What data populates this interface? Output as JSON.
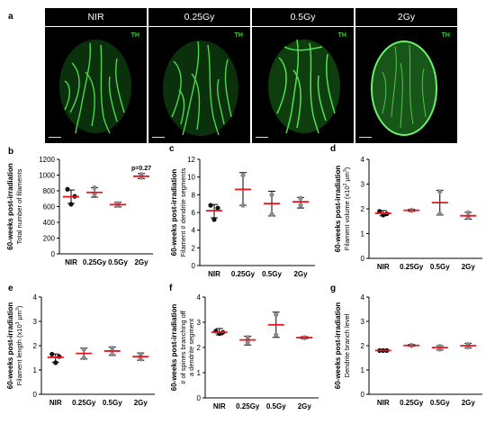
{
  "figure": {
    "panel_a": {
      "label": "a",
      "headers": [
        "NIR",
        "0.25Gy",
        "0.5Gy",
        "2Gy"
      ],
      "stain_label": "TH"
    }
  },
  "colors": {
    "mean_line": "#e8141e",
    "error_bar": "#000000",
    "heart_green": "#36c23a",
    "dot_dark": "#111111",
    "dot_grey": "#8a8a8a"
  },
  "chart_data": [
    {
      "panel": "b",
      "type": "scatter",
      "title": "",
      "ylabel_line1": "60-weeks post-irradiation",
      "ylabel_line2": "Total number of filaments",
      "categories": [
        "NIR",
        "0.25Gy",
        "0.5Gy",
        "2Gy"
      ],
      "ylim": [
        0,
        1200
      ],
      "yticks": [
        "0",
        "200",
        "400",
        "600",
        "800",
        "1000",
        "1200"
      ],
      "annotation": {
        "text": "p=0.27",
        "category": "2Gy"
      },
      "groups": [
        {
          "name": "NIR",
          "points": [
            820,
            730,
            630
          ],
          "mean": 725,
          "err": [
            640,
            810
          ],
          "color": "#111111"
        },
        {
          "name": "0.25Gy",
          "points": [
            840,
            760
          ],
          "mean": 780,
          "err": [
            720,
            840
          ],
          "color": "#8a8a8a"
        },
        {
          "name": "0.5Gy",
          "points": [
            640,
            620
          ],
          "mean": 625,
          "err": [
            595,
            655
          ],
          "color": "#8a8a8a"
        },
        {
          "name": "2Gy",
          "points": [
            1010,
            970
          ],
          "mean": 985,
          "err": [
            955,
            1020
          ],
          "color": "#8a8a8a"
        }
      ]
    },
    {
      "panel": "c",
      "type": "scatter",
      "ylabel_line1": "60-weeks post-irradiation",
      "ylabel_line2": "Filament # dendrite segments",
      "categories": [
        "NIR",
        "0.25Gy",
        "0.5Gy",
        "2Gy"
      ],
      "ylim": [
        0,
        12
      ],
      "yticks": [
        "0",
        "2",
        "4",
        "6",
        "8",
        "10",
        "12"
      ],
      "groups": [
        {
          "name": "NIR",
          "points": [
            6.8,
            6.5,
            5.2
          ],
          "mean": 6.2,
          "err": [
            5.4,
            6.9
          ],
          "color": "#111111"
        },
        {
          "name": "0.25Gy",
          "points": [
            10.2,
            6.8
          ],
          "mean": 8.6,
          "err": [
            6.8,
            10.5
          ],
          "color": "#8a8a8a"
        },
        {
          "name": "0.5Gy",
          "points": [
            8.0,
            5.8
          ],
          "mean": 7.0,
          "err": [
            5.6,
            8.4
          ],
          "color": "#8a8a8a"
        },
        {
          "name": "2Gy",
          "points": [
            7.6,
            6.8
          ],
          "mean": 7.2,
          "err": [
            6.5,
            7.7
          ],
          "color": "#8a8a8a"
        }
      ]
    },
    {
      "panel": "d",
      "type": "scatter",
      "ylabel_line1": "60-weeks post-irradiation",
      "ylabel_line2": "Filament volume (x10",
      "ylabel_sup": "3",
      "ylabel_tail": " µm",
      "ylabel_sup2": "3",
      "ylabel_end": ")",
      "categories": [
        "NIR",
        "0.25Gy",
        "0.5Gy",
        "2Gy"
      ],
      "ylim": [
        0,
        4
      ],
      "yticks": [
        "0",
        "1",
        "2",
        "3",
        "4"
      ],
      "groups": [
        {
          "name": "NIR",
          "points": [
            1.9,
            1.8,
            1.75
          ],
          "mean": 1.82,
          "err": [
            1.72,
            1.93
          ],
          "color": "#111111"
        },
        {
          "name": "0.25Gy",
          "points": [
            1.95,
            1.93
          ],
          "mean": 1.94,
          "err": [
            1.9,
            1.98
          ],
          "color": "#8a8a8a"
        },
        {
          "name": "0.5Gy",
          "points": [
            2.7,
            1.8
          ],
          "mean": 2.25,
          "err": [
            1.75,
            2.75
          ],
          "color": "#8a8a8a"
        },
        {
          "name": "2Gy",
          "points": [
            1.85,
            1.65
          ],
          "mean": 1.72,
          "err": [
            1.58,
            1.86
          ],
          "color": "#8a8a8a"
        }
      ]
    },
    {
      "panel": "e",
      "type": "scatter",
      "ylabel_line1": "60-weeks post-irradiation",
      "ylabel_line2": "Filament length (x10",
      "ylabel_sup": "3",
      "ylabel_tail": " µm",
      "ylabel_sup2": "3",
      "ylabel_end": ")",
      "categories": [
        "NIR",
        "0.25Gy",
        "0.5Gy",
        "2Gy"
      ],
      "ylim": [
        0,
        4
      ],
      "yticks": [
        "0",
        "1",
        "2",
        "3",
        "4"
      ],
      "groups": [
        {
          "name": "NIR",
          "points": [
            1.65,
            1.55,
            1.3
          ],
          "mean": 1.52,
          "err": [
            1.32,
            1.66
          ],
          "color": "#111111"
        },
        {
          "name": "0.25Gy",
          "points": [
            1.85,
            1.5
          ],
          "mean": 1.68,
          "err": [
            1.45,
            1.9
          ],
          "color": "#8a8a8a"
        },
        {
          "name": "0.5Gy",
          "points": [
            1.9,
            1.65
          ],
          "mean": 1.78,
          "err": [
            1.6,
            1.95
          ],
          "color": "#8a8a8a"
        },
        {
          "name": "2Gy",
          "points": [
            1.65,
            1.45
          ],
          "mean": 1.55,
          "err": [
            1.4,
            1.7
          ],
          "color": "#8a8a8a"
        }
      ]
    },
    {
      "panel": "f",
      "type": "scatter",
      "ylabel_line1": "60-weeks post-irradiation",
      "ylabel_line2": "# of spines branching off",
      "ylabel_line3": "a dendrite segment",
      "categories": [
        "NIR",
        "0.25Gy",
        "0.5Gy",
        "2Gy"
      ],
      "ylim": [
        0,
        4
      ],
      "yticks": [
        "0",
        "1",
        "2",
        "3",
        "4"
      ],
      "groups": [
        {
          "name": "NIR",
          "points": [
            2.65,
            2.6,
            2.55
          ],
          "mean": 2.6,
          "err": [
            2.5,
            2.75
          ],
          "color": "#111111"
        },
        {
          "name": "0.25Gy",
          "points": [
            2.4,
            2.2
          ],
          "mean": 2.3,
          "err": [
            2.1,
            2.45
          ],
          "color": "#8a8a8a"
        },
        {
          "name": "0.5Gy",
          "points": [
            3.3,
            2.5
          ],
          "mean": 2.9,
          "err": [
            2.4,
            3.4
          ],
          "color": "#8a8a8a"
        },
        {
          "name": "2Gy",
          "points": [
            2.4,
            2.38
          ],
          "mean": 2.39,
          "err": [
            2.35,
            2.43
          ],
          "color": "#8a8a8a"
        }
      ]
    },
    {
      "panel": "g",
      "type": "scatter",
      "ylabel_line1": "60-weeks post-irradiation",
      "ylabel_line2": "Dendrite branch level",
      "categories": [
        "NIR",
        "0.25Gy",
        "0.5Gy",
        "2Gy"
      ],
      "ylim": [
        0,
        4
      ],
      "yticks": [
        "0",
        "1",
        "2",
        "3",
        "4"
      ],
      "groups": [
        {
          "name": "NIR",
          "points": [
            1.8,
            1.8,
            1.8
          ],
          "mean": 1.8,
          "err": [
            1.78,
            1.82
          ],
          "color": "#111111"
        },
        {
          "name": "0.25Gy",
          "points": [
            2.02,
            2.0
          ],
          "mean": 2.01,
          "err": [
            1.98,
            2.05
          ],
          "color": "#8a8a8a"
        },
        {
          "name": "0.5Gy",
          "points": [
            1.98,
            1.85
          ],
          "mean": 1.92,
          "err": [
            1.82,
            2.0
          ],
          "color": "#8a8a8a"
        },
        {
          "name": "2Gy",
          "points": [
            2.05,
            1.95
          ],
          "mean": 2.0,
          "err": [
            1.9,
            2.1
          ],
          "color": "#8a8a8a"
        }
      ]
    }
  ]
}
